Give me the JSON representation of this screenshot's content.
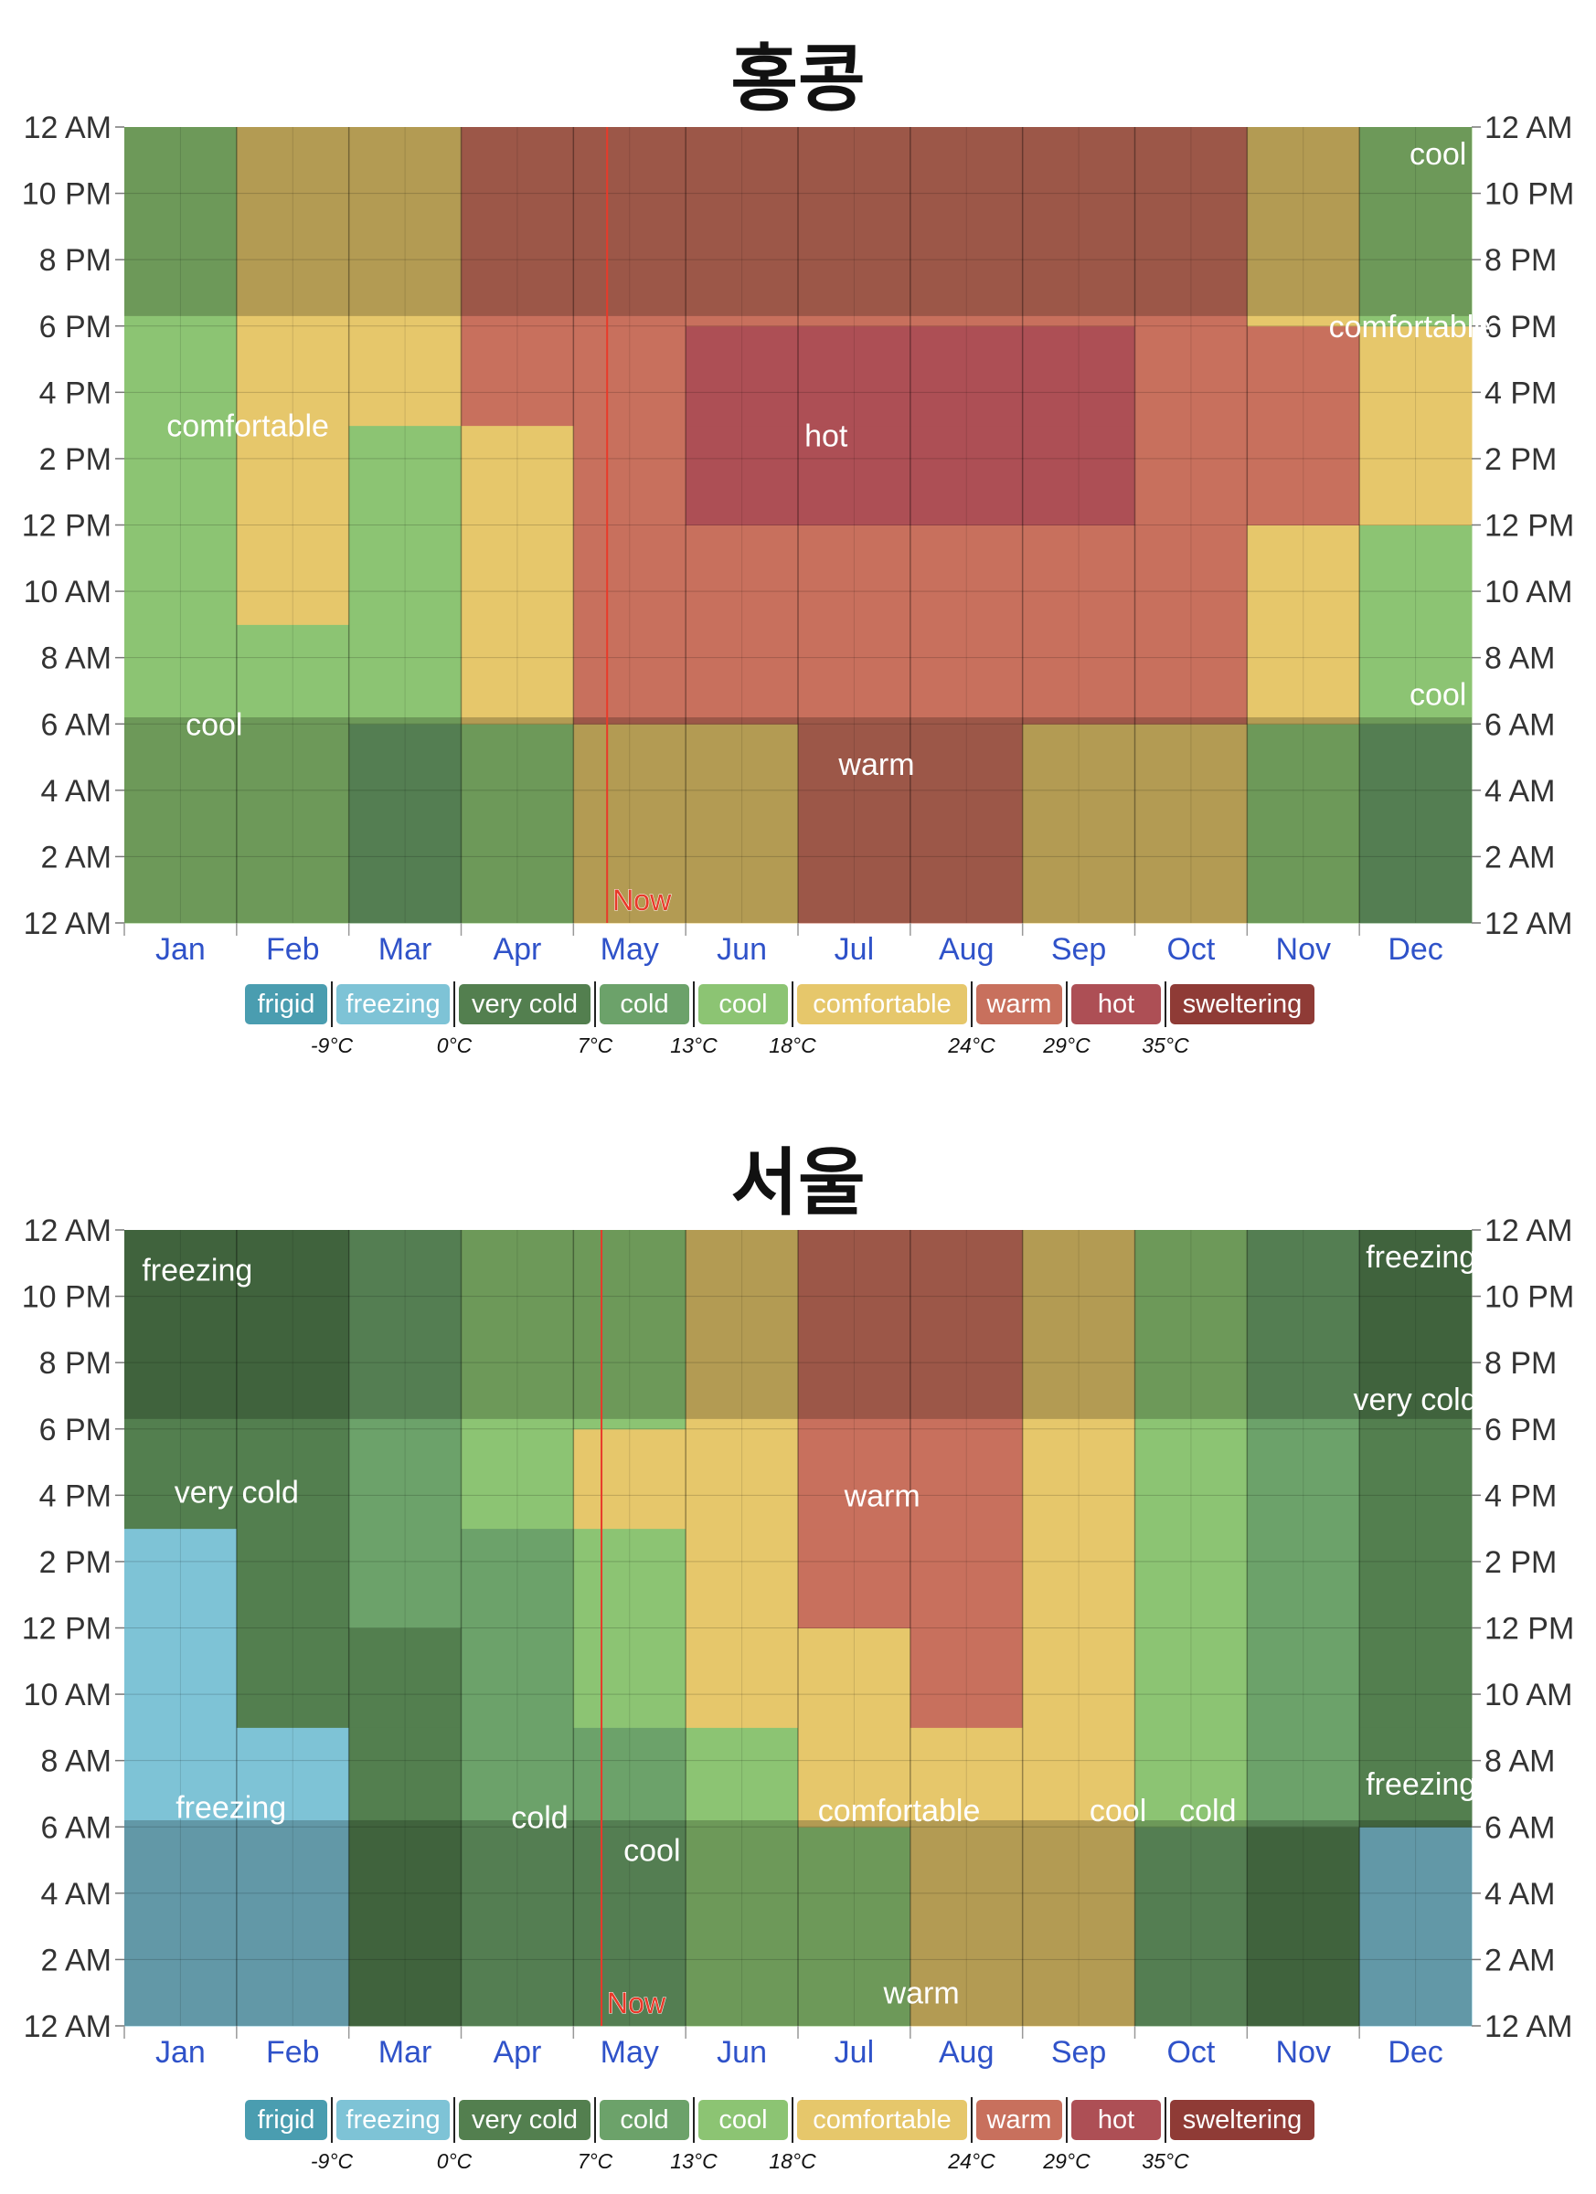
{
  "chart_data": [
    {
      "type": "heatmap",
      "title": "홍콩",
      "months": [
        "Jan",
        "Feb",
        "Mar",
        "Apr",
        "May",
        "Jun",
        "Jul",
        "Aug",
        "Sep",
        "Oct",
        "Nov",
        "Dec"
      ],
      "hour_ticks": [
        "12 AM",
        "2 AM",
        "4 AM",
        "6 AM",
        "8 AM",
        "10 AM",
        "12 PM",
        "2 PM",
        "4 PM",
        "6 PM",
        "8 PM",
        "10 PM",
        "12 AM"
      ],
      "now_label": "Now",
      "now_month": 4.3,
      "hour_samples": [
        0,
        6,
        9,
        12,
        15,
        18,
        24
      ],
      "category_grid": [
        [
          4,
          4,
          4,
          4,
          4,
          4,
          4
        ],
        [
          4,
          4,
          5,
          5,
          5,
          5,
          4
        ],
        [
          3,
          4,
          4,
          4,
          5,
          5,
          4
        ],
        [
          4,
          5,
          5,
          5,
          6,
          6,
          5
        ],
        [
          5,
          6,
          6,
          6,
          6,
          6,
          6
        ],
        [
          5,
          6,
          6,
          7,
          7,
          6,
          6
        ],
        [
          6,
          6,
          6,
          7,
          7,
          6,
          6
        ],
        [
          6,
          6,
          6,
          7,
          7,
          6,
          6
        ],
        [
          5,
          6,
          6,
          7,
          7,
          6,
          6
        ],
        [
          5,
          6,
          6,
          6,
          6,
          6,
          6
        ],
        [
          4,
          5,
          5,
          6,
          6,
          5,
          5
        ],
        [
          3,
          4,
          4,
          5,
          5,
          4,
          4
        ]
      ],
      "labels": [
        {
          "text": "comfortable",
          "month": 1.1,
          "hour": 15.0
        },
        {
          "text": "hot",
          "month": 6.25,
          "hour": 14.7
        },
        {
          "text": "cool",
          "month": 0.8,
          "hour": 6.0
        },
        {
          "text": "warm",
          "month": 6.7,
          "hour": 4.8
        },
        {
          "text": "cool",
          "month": 11.7,
          "hour": 23.2
        },
        {
          "text": "comfortable",
          "month": 11.45,
          "hour": 18.0
        },
        {
          "text": "cool",
          "month": 11.7,
          "hour": 6.9
        }
      ]
    },
    {
      "type": "heatmap",
      "title": "서울",
      "months": [
        "Jan",
        "Feb",
        "Mar",
        "Apr",
        "May",
        "Jun",
        "Jul",
        "Aug",
        "Sep",
        "Oct",
        "Nov",
        "Dec"
      ],
      "hour_ticks": [
        "12 AM",
        "2 AM",
        "4 AM",
        "6 AM",
        "8 AM",
        "10 AM",
        "12 PM",
        "2 PM",
        "4 PM",
        "6 PM",
        "8 PM",
        "10 PM",
        "12 AM"
      ],
      "now_label": "Now",
      "now_month": 4.25,
      "hour_samples": [
        0,
        6,
        9,
        12,
        15,
        18,
        24
      ],
      "category_grid": [
        [
          1,
          1,
          1,
          1,
          2,
          2,
          1
        ],
        [
          1,
          1,
          2,
          2,
          2,
          2,
          1
        ],
        [
          2,
          2,
          2,
          3,
          3,
          3,
          2
        ],
        [
          3,
          3,
          3,
          3,
          4,
          4,
          3
        ],
        [
          3,
          3,
          4,
          4,
          5,
          4,
          4
        ],
        [
          4,
          4,
          5,
          5,
          5,
          5,
          4
        ],
        [
          4,
          5,
          5,
          6,
          6,
          6,
          5
        ],
        [
          5,
          5,
          6,
          6,
          6,
          6,
          5
        ],
        [
          5,
          5,
          5,
          5,
          5,
          5,
          5
        ],
        [
          3,
          4,
          4,
          4,
          4,
          4,
          3
        ],
        [
          2,
          3,
          3,
          3,
          3,
          3,
          2
        ],
        [
          1,
          2,
          2,
          2,
          2,
          2,
          1
        ]
      ],
      "labels": [
        {
          "text": "freezing",
          "month": 0.65,
          "hour": 22.8
        },
        {
          "text": "very cold",
          "month": 1.0,
          "hour": 16.1
        },
        {
          "text": "freezing",
          "month": 0.95,
          "hour": 6.6
        },
        {
          "text": "cold",
          "month": 3.7,
          "hour": 6.3
        },
        {
          "text": "cool",
          "month": 4.7,
          "hour": 5.3
        },
        {
          "text": "comfortable",
          "month": 6.9,
          "hour": 6.5
        },
        {
          "text": "warm",
          "month": 6.75,
          "hour": 16.0
        },
        {
          "text": "warm",
          "month": 7.1,
          "hour": 1.0
        },
        {
          "text": "cool",
          "month": 8.85,
          "hour": 6.5
        },
        {
          "text": "cold",
          "month": 9.65,
          "hour": 6.5
        },
        {
          "text": "freezing",
          "month": 11.55,
          "hour": 23.2
        },
        {
          "text": "very cold",
          "month": 11.5,
          "hour": 18.9
        },
        {
          "text": "freezing",
          "month": 11.55,
          "hour": 7.3
        }
      ]
    }
  ],
  "legend": {
    "categories": [
      {
        "label": "frigid",
        "color": "#4a9db0"
      },
      {
        "label": "freezing",
        "color": "#7ec3d6"
      },
      {
        "label": "very cold",
        "color": "#537f4f"
      },
      {
        "label": "cold",
        "color": "#6ca26a"
      },
      {
        "label": "cool",
        "color": "#8cc473"
      },
      {
        "label": "comfortable",
        "color": "#e6c76b"
      },
      {
        "label": "warm",
        "color": "#c8705d"
      },
      {
        "label": "hot",
        "color": "#ad4f55"
      },
      {
        "label": "sweltering",
        "color": "#8f3b36"
      }
    ],
    "thresholds": [
      "-9°C",
      "0°C",
      "7°C",
      "13°C",
      "18°C",
      "24°C",
      "29°C",
      "35°C"
    ]
  },
  "colors": {
    "month_label": "#2f52c9",
    "now_line": "#e83a2a",
    "grid": "#000000",
    "axis_text": "#333333"
  }
}
